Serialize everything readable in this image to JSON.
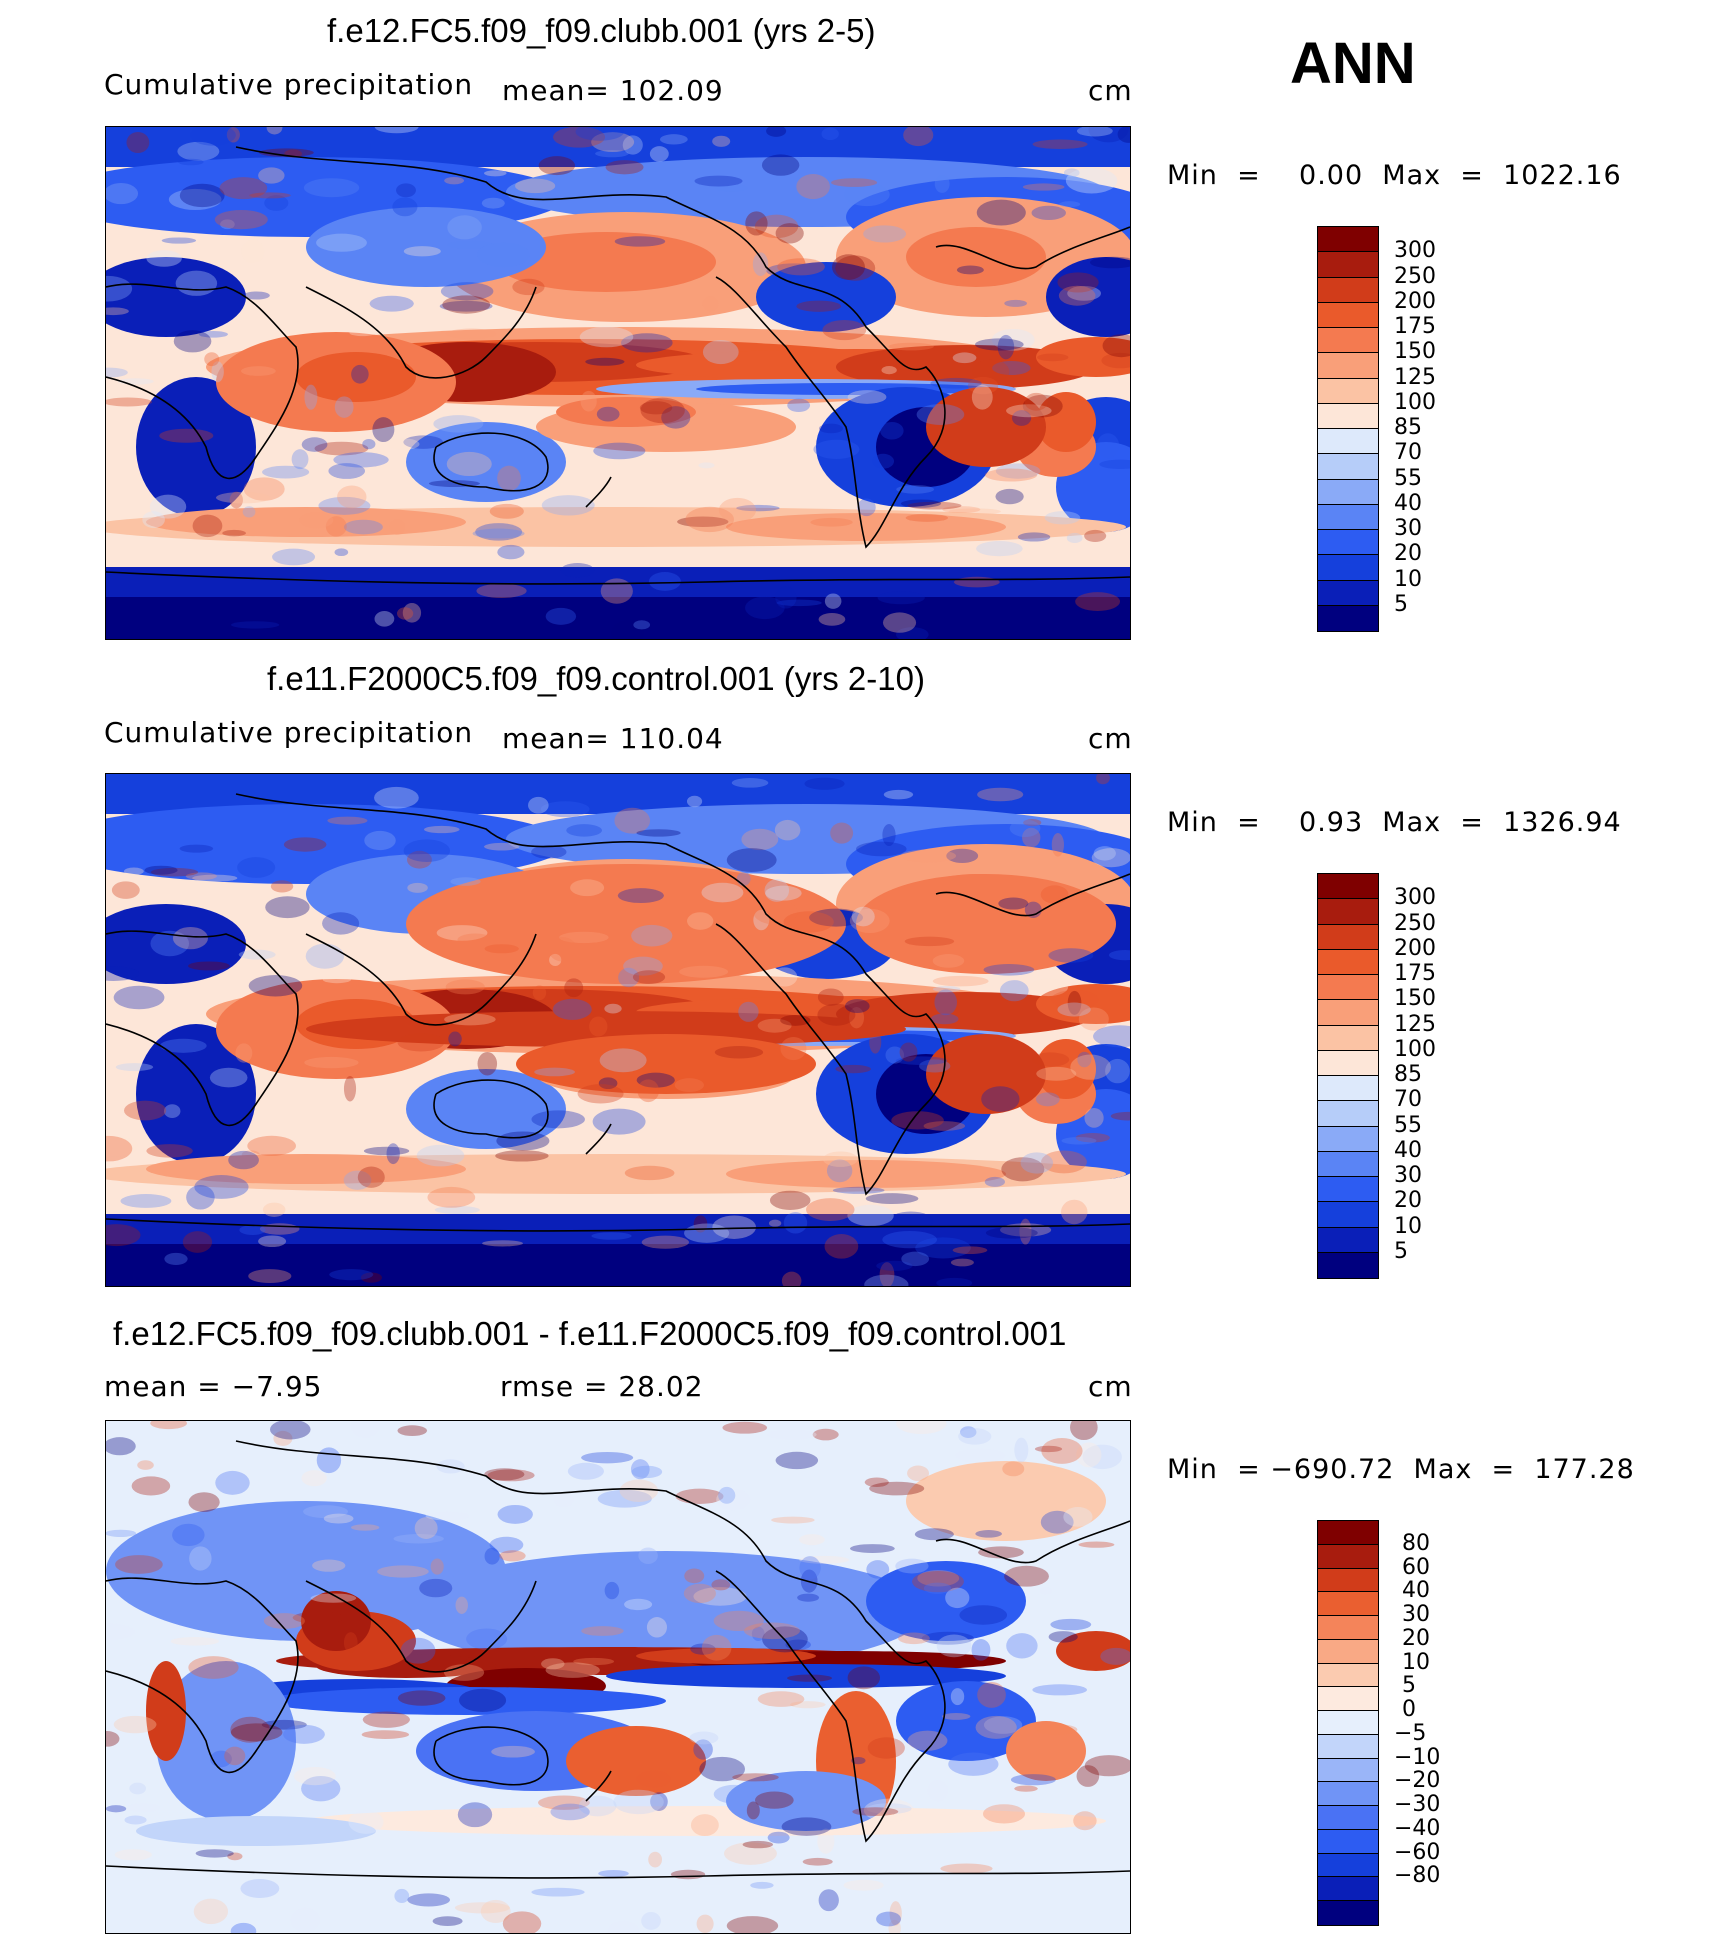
{
  "season": "ANN",
  "colors": {
    "main_scale": [
      "#00007f",
      "#0a1fb8",
      "#1540dc",
      "#2d5cf2",
      "#5a84f5",
      "#8aaaf7",
      "#b6cdf9",
      "#dde9fb",
      "#fde6d8",
      "#fbc3a4",
      "#f99f79",
      "#f47a50",
      "#ea5a2b",
      "#d13c1a",
      "#a81c0e",
      "#7f0000"
    ],
    "diff_scale": [
      "#00007f",
      "#0a1fb8",
      "#1540dc",
      "#2d5cf2",
      "#4a72f4",
      "#7094f6",
      "#9ab5f8",
      "#c2d5fa",
      "#e6effc",
      "#fdeadf",
      "#fbcbb0",
      "#f9a985",
      "#f4845a",
      "#ea5f30",
      "#d13c1a",
      "#a81c0e",
      "#7f0000"
    ]
  },
  "panels": [
    {
      "title": "f.e12.FC5.f09_f09.clubb.001 (yrs 2-5)",
      "variable": "Cumulative precipitation",
      "stat": "mean=  102.09",
      "stat2": "",
      "units": "cm",
      "minmax": "Min  =    0.00  Max  =  1022.16",
      "colorbar_labels": [
        "300",
        "250",
        "200",
        "175",
        "150",
        "125",
        "100",
        "85",
        "70",
        "55",
        "40",
        "30",
        "20",
        "10",
        "5"
      ]
    },
    {
      "title": "f.e11.F2000C5.f09_f09.control.001 (yrs 2-10)",
      "variable": "Cumulative precipitation",
      "stat": "mean=  110.04",
      "stat2": "",
      "units": "cm",
      "minmax": "Min  =    0.93  Max  =  1326.94",
      "colorbar_labels": [
        "300",
        "250",
        "200",
        "175",
        "150",
        "125",
        "100",
        "85",
        "70",
        "55",
        "40",
        "30",
        "20",
        "10",
        "5"
      ]
    },
    {
      "title": "f.e12.FC5.f09_f09.clubb.001 - f.e11.F2000C5.f09_f09.control.001",
      "variable": "",
      "stat": "mean  =   −7.95",
      "stat2": "rmse  =    28.02",
      "units": "cm",
      "minmax": "Min  = −690.72  Max  =  177.28",
      "colorbar_labels": [
        "80",
        "60",
        "40",
        "30",
        "20",
        "10",
        "5",
        "0",
        "−5",
        "−10",
        "−20",
        "−30",
        "−40",
        "−60",
        "−80"
      ]
    }
  ]
}
